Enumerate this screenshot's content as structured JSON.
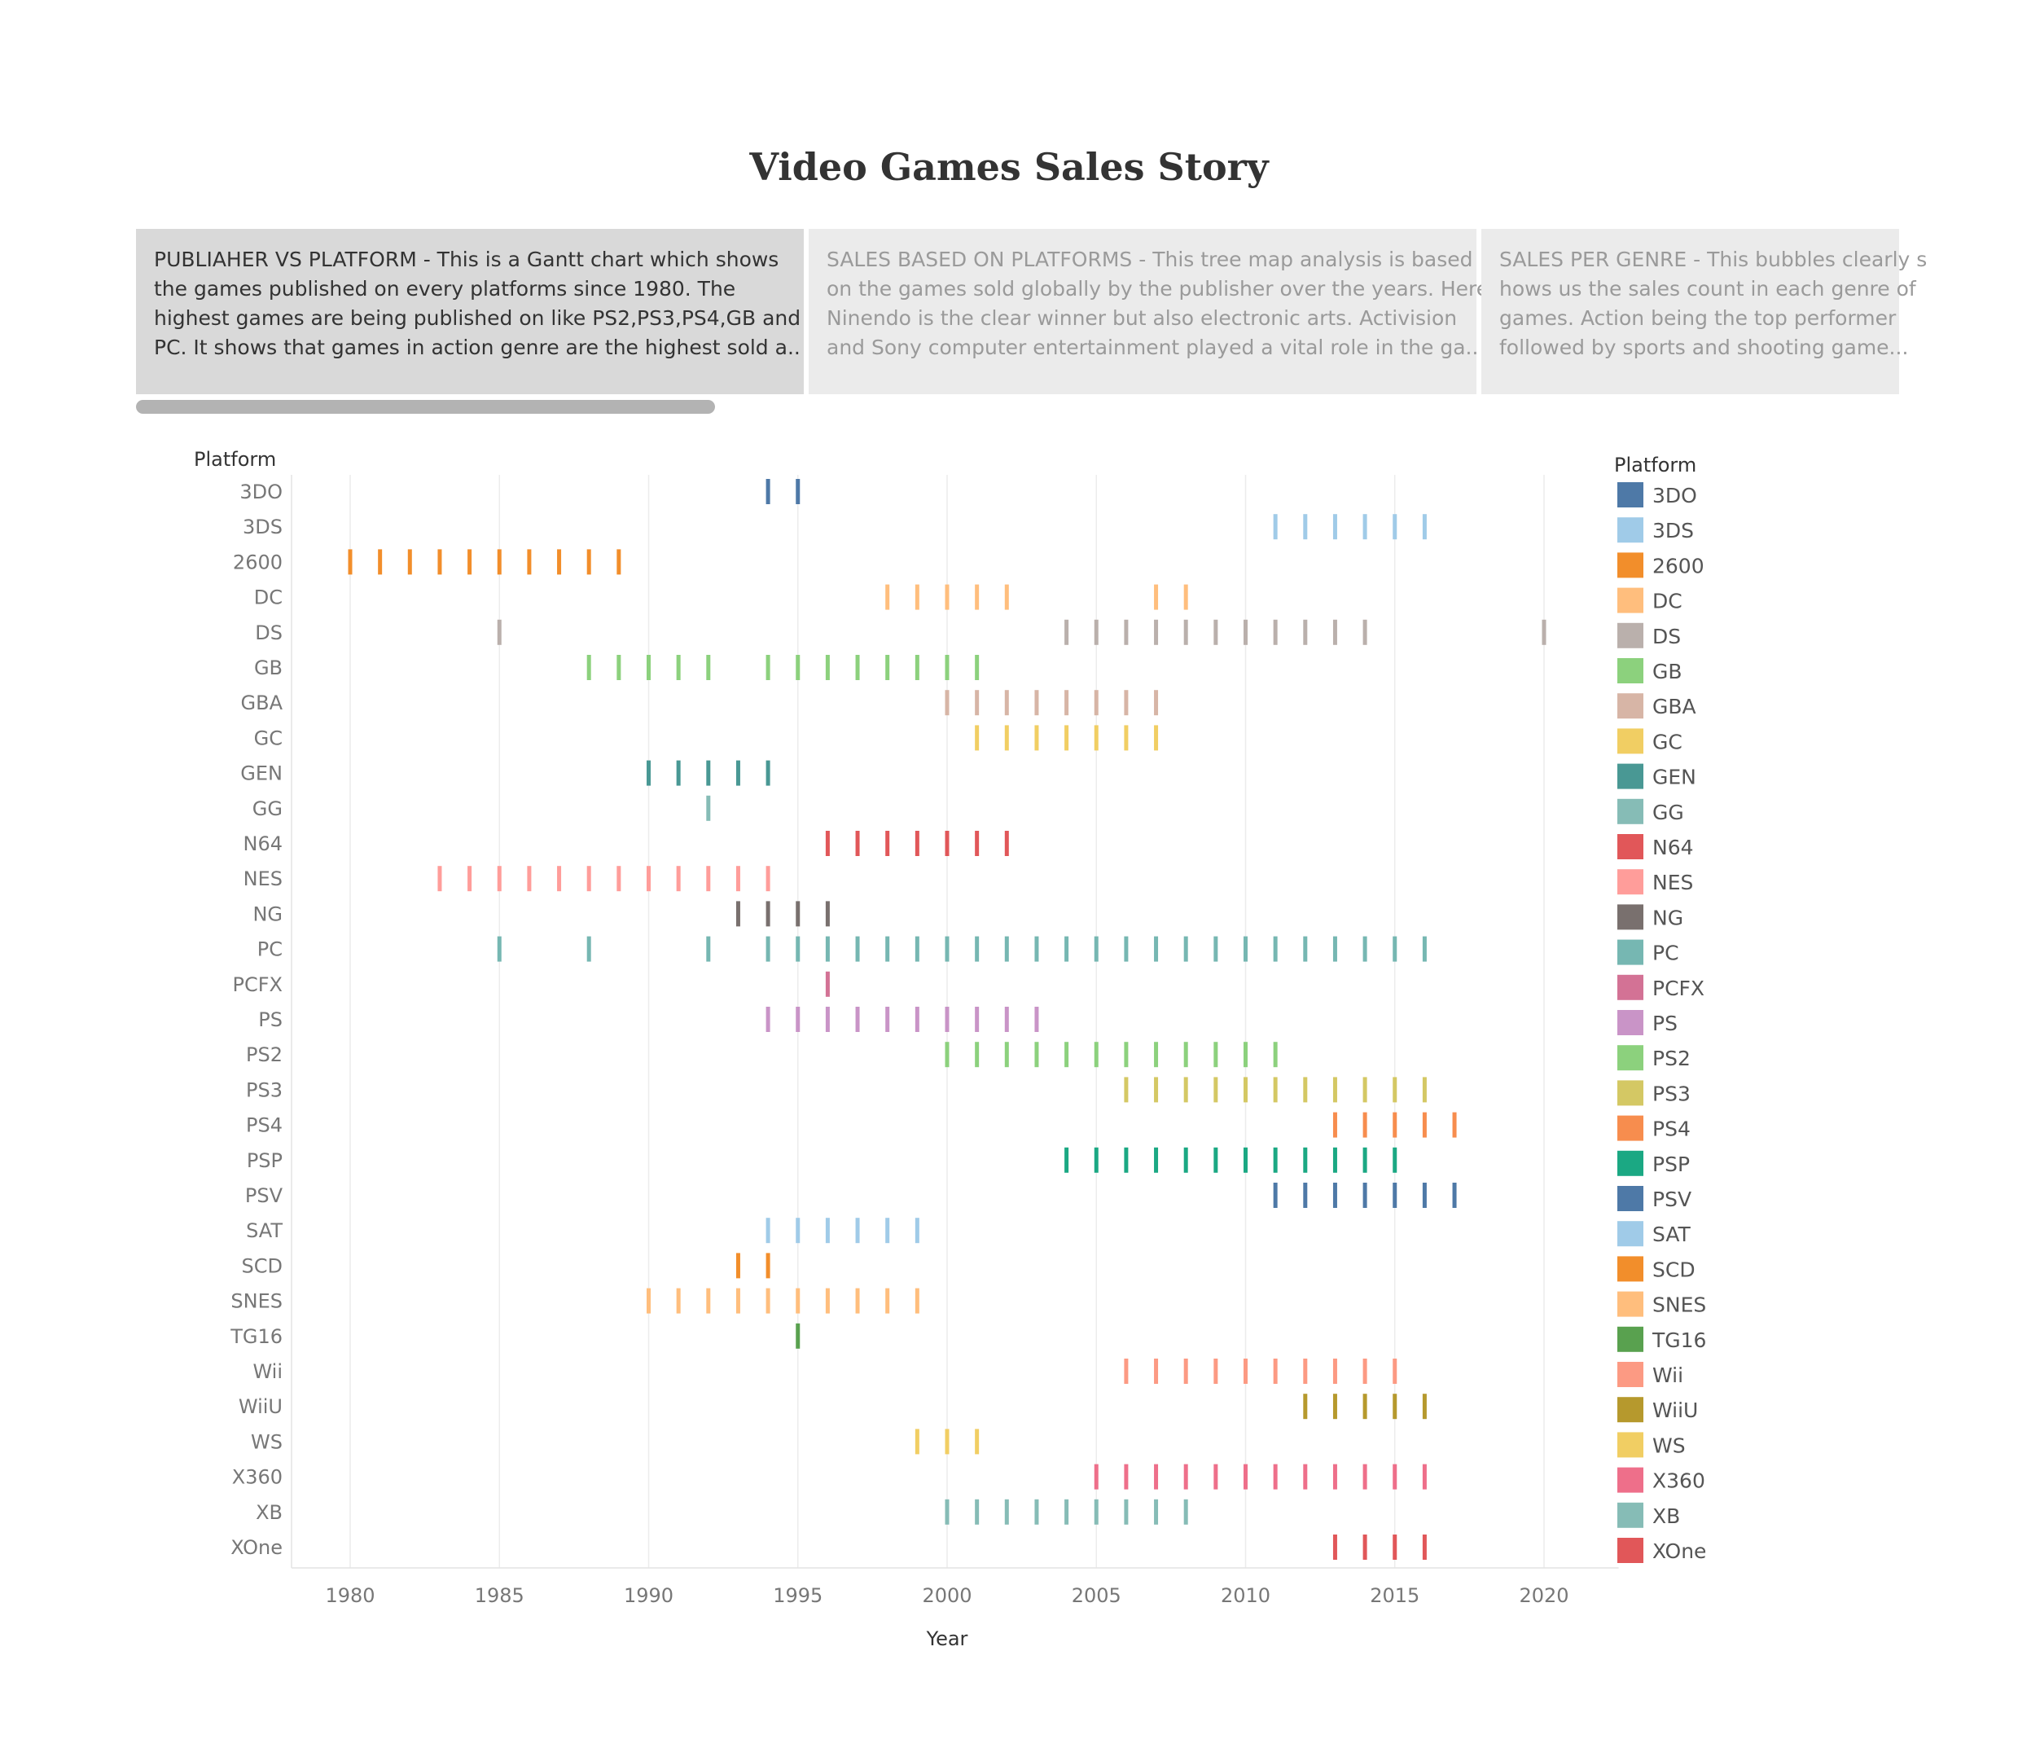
{
  "title": "Video Games Sales Story",
  "story_points": [
    {
      "state": "active",
      "lines": [
        "PUBLIAHER VS PLATFORM - This is a Gantt chart which shows",
        "the games published on every platforms since 1980. The",
        "highest  games are being published on like PS2,PS3,PS4,GB and",
        "PC. It shows that games in action  genre are  the highest sold  a.."
      ]
    },
    {
      "state": "inactive",
      "lines": [
        "SALES BASED ON PLATFORMS - This tree map analysis is based",
        "on the games sold globally by the publisher over the years. Here",
        "Ninendo is the clear winner but also electronic  arts. Activision",
        "and Sony computer entertainment played a vital role in the ga.."
      ]
    },
    {
      "state": "inactive",
      "lines": [
        "SALES PER GENRE - This bubbles clearly s",
        "hows us the sales count in each genre of",
        "games. Action being the top  performer",
        "followed by sports and shooting game..."
      ]
    }
  ],
  "chart_data": {
    "type": "gantt",
    "xlabel": "Year",
    "ylabel": "Platform",
    "legend_title": "Platform",
    "legend_position": "right",
    "xlim": [
      1978,
      2022.5
    ],
    "xticks": [
      1980,
      1985,
      1990,
      1995,
      2000,
      2005,
      2010,
      2015,
      2020
    ],
    "grid": "vertical",
    "platforms": [
      {
        "name": "3DO",
        "color": "#4e79a7",
        "years": [
          1994,
          1995
        ]
      },
      {
        "name": "3DS",
        "color": "#a0cbe8",
        "years": [
          2011,
          2012,
          2013,
          2014,
          2015,
          2016
        ]
      },
      {
        "name": "2600",
        "color": "#f28e2b",
        "years": [
          1980,
          1981,
          1982,
          1983,
          1984,
          1985,
          1986,
          1987,
          1988,
          1989
        ]
      },
      {
        "name": "DC",
        "color": "#ffbe7d",
        "years": [
          1998,
          1999,
          2000,
          2001,
          2002,
          2007,
          2008
        ]
      },
      {
        "name": "DS",
        "color": "#bab0ac",
        "years": [
          1985,
          2004,
          2005,
          2006,
          2007,
          2008,
          2009,
          2010,
          2011,
          2012,
          2013,
          2014,
          2020
        ]
      },
      {
        "name": "GB",
        "color": "#8cd17d",
        "years": [
          1988,
          1989,
          1990,
          1991,
          1992,
          1994,
          1995,
          1996,
          1997,
          1998,
          1999,
          2000,
          2001
        ]
      },
      {
        "name": "GBA",
        "color": "#d7b5a6",
        "years": [
          2000,
          2001,
          2002,
          2003,
          2004,
          2005,
          2006,
          2007
        ]
      },
      {
        "name": "GC",
        "color": "#f1ce63",
        "years": [
          2001,
          2002,
          2003,
          2004,
          2005,
          2006,
          2007
        ]
      },
      {
        "name": "GEN",
        "color": "#499894",
        "years": [
          1990,
          1991,
          1992,
          1993,
          1994
        ]
      },
      {
        "name": "GG",
        "color": "#86bcb6",
        "years": [
          1992
        ]
      },
      {
        "name": "N64",
        "color": "#e15759",
        "years": [
          1996,
          1997,
          1998,
          1999,
          2000,
          2001,
          2002
        ]
      },
      {
        "name": "NES",
        "color": "#ff9d9a",
        "years": [
          1983,
          1984,
          1985,
          1986,
          1987,
          1988,
          1989,
          1990,
          1991,
          1992,
          1993,
          1994
        ]
      },
      {
        "name": "NG",
        "color": "#79706e",
        "years": [
          1993,
          1994,
          1995,
          1996
        ]
      },
      {
        "name": "PC",
        "color": "#76b7b2",
        "years": [
          1985,
          1988,
          1992,
          1994,
          1995,
          1996,
          1997,
          1998,
          1999,
          2000,
          2001,
          2002,
          2003,
          2004,
          2005,
          2006,
          2007,
          2008,
          2009,
          2010,
          2011,
          2012,
          2013,
          2014,
          2015,
          2016
        ]
      },
      {
        "name": "PCFX",
        "color": "#d37295",
        "years": [
          1996
        ]
      },
      {
        "name": "PS",
        "color": "#c994c7",
        "years": [
          1994,
          1995,
          1996,
          1997,
          1998,
          1999,
          2000,
          2001,
          2002,
          2003
        ]
      },
      {
        "name": "PS2",
        "color": "#8cd17d",
        "years": [
          2000,
          2001,
          2002,
          2003,
          2004,
          2005,
          2006,
          2007,
          2008,
          2009,
          2010,
          2011
        ]
      },
      {
        "name": "PS3",
        "color": "#d4c864",
        "years": [
          2006,
          2007,
          2008,
          2009,
          2010,
          2011,
          2012,
          2013,
          2014,
          2015,
          2016
        ]
      },
      {
        "name": "PS4",
        "color": "#f78d4e",
        "years": [
          2013,
          2014,
          2015,
          2016,
          2017
        ]
      },
      {
        "name": "PSP",
        "color": "#1ba883",
        "years": [
          2004,
          2005,
          2006,
          2007,
          2008,
          2009,
          2010,
          2011,
          2012,
          2013,
          2014,
          2015
        ]
      },
      {
        "name": "PSV",
        "color": "#4e79a7",
        "years": [
          2011,
          2012,
          2013,
          2014,
          2015,
          2016,
          2017
        ]
      },
      {
        "name": "SAT",
        "color": "#a0cbe8",
        "years": [
          1994,
          1995,
          1996,
          1997,
          1998,
          1999
        ]
      },
      {
        "name": "SCD",
        "color": "#f28e2b",
        "years": [
          1993,
          1994
        ]
      },
      {
        "name": "SNES",
        "color": "#ffbe7d",
        "years": [
          1990,
          1991,
          1992,
          1993,
          1994,
          1995,
          1996,
          1997,
          1998,
          1999
        ]
      },
      {
        "name": "TG16",
        "color": "#59a14f",
        "years": [
          1995
        ]
      },
      {
        "name": "Wii",
        "color": "#fc9a83",
        "years": [
          2006,
          2007,
          2008,
          2009,
          2010,
          2011,
          2012,
          2013,
          2014,
          2015
        ]
      },
      {
        "name": "WiiU",
        "color": "#b6992d",
        "years": [
          2012,
          2013,
          2014,
          2015,
          2016
        ]
      },
      {
        "name": "WS",
        "color": "#f1ce63",
        "years": [
          1999,
          2000,
          2001
        ]
      },
      {
        "name": "X360",
        "color": "#ee6f8a",
        "years": [
          2005,
          2006,
          2007,
          2008,
          2009,
          2010,
          2011,
          2012,
          2013,
          2014,
          2015,
          2016
        ]
      },
      {
        "name": "XB",
        "color": "#86bcb6",
        "years": [
          2000,
          2001,
          2002,
          2003,
          2004,
          2005,
          2006,
          2007,
          2008
        ]
      },
      {
        "name": "XOne",
        "color": "#e15759",
        "years": [
          2013,
          2014,
          2015,
          2016
        ]
      }
    ]
  }
}
